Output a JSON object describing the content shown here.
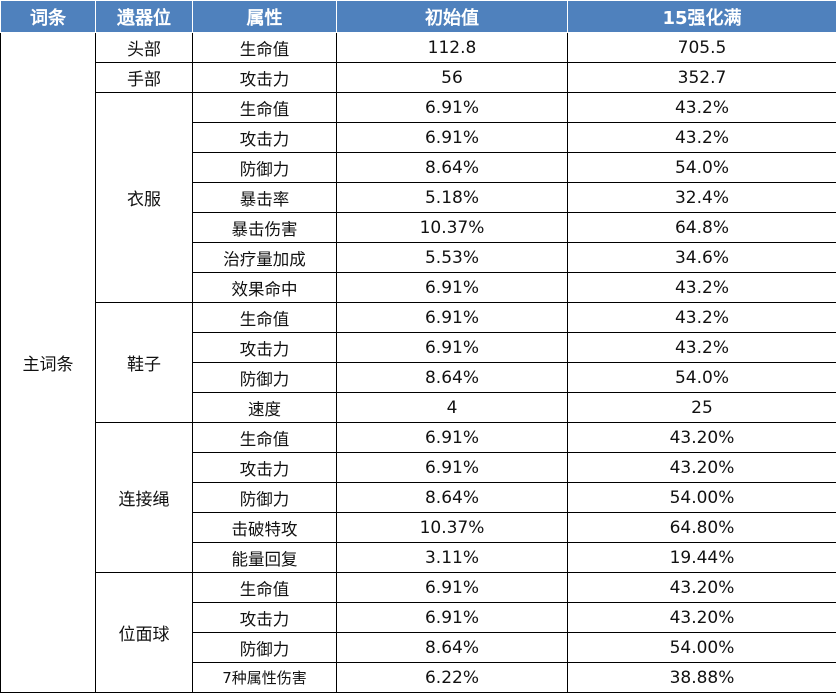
{
  "headers": [
    "词条",
    "遗器位",
    "属性",
    "初始值",
    "15强化满"
  ],
  "main_label": "主词条",
  "groups": [
    {
      "slot": "头部",
      "rows": [
        {
          "attr": "生命值",
          "init": "112.8",
          "max": "705.5"
        }
      ]
    },
    {
      "slot": "手部",
      "rows": [
        {
          "attr": "攻击力",
          "init": "56",
          "max": "352.7"
        }
      ]
    },
    {
      "slot": "衣服",
      "rows": [
        {
          "attr": "生命值",
          "init": "6.91%",
          "max": "43.2%"
        },
        {
          "attr": "攻击力",
          "init": "6.91%",
          "max": "43.2%"
        },
        {
          "attr": "防御力",
          "init": "8.64%",
          "max": "54.0%"
        },
        {
          "attr": "暴击率",
          "init": "5.18%",
          "max": "32.4%"
        },
        {
          "attr": "暴击伤害",
          "init": "10.37%",
          "max": "64.8%"
        },
        {
          "attr": "治疗量加成",
          "init": "5.53%",
          "max": "34.6%"
        },
        {
          "attr": "效果命中",
          "init": "6.91%",
          "max": "43.2%"
        }
      ]
    },
    {
      "slot": "鞋子",
      "rows": [
        {
          "attr": "生命值",
          "init": "6.91%",
          "max": "43.2%"
        },
        {
          "attr": "攻击力",
          "init": "6.91%",
          "max": "43.2%"
        },
        {
          "attr": "防御力",
          "init": "8.64%",
          "max": "54.0%"
        },
        {
          "attr": "速度",
          "init": "4",
          "max": "25"
        }
      ]
    },
    {
      "slot": "连接绳",
      "rows": [
        {
          "attr": "生命值",
          "init": "6.91%",
          "max": "43.20%"
        },
        {
          "attr": "攻击力",
          "init": "6.91%",
          "max": "43.20%"
        },
        {
          "attr": "防御力",
          "init": "8.64%",
          "max": "54.00%"
        },
        {
          "attr": "击破特攻",
          "init": "10.37%",
          "max": "64.80%"
        },
        {
          "attr": "能量回复",
          "init": "3.11%",
          "max": "19.44%"
        }
      ]
    },
    {
      "slot": "位面球",
      "rows": [
        {
          "attr": "生命值",
          "init": "6.91%",
          "max": "43.20%"
        },
        {
          "attr": "攻击力",
          "init": "6.91%",
          "max": "43.20%"
        },
        {
          "attr": "防御力",
          "init": "8.64%",
          "max": "54.00%"
        },
        {
          "attr": "7种属性伤害",
          "init": "6.22%",
          "max": "38.88%"
        }
      ]
    }
  ]
}
